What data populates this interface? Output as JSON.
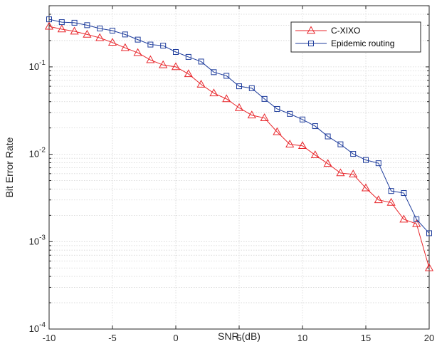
{
  "chart_data": {
    "type": "line",
    "title": "",
    "xlabel": "SNR (dB)",
    "ylabel": "Bit Error Rate",
    "xlim": [
      -10,
      20
    ],
    "ylim": [
      0.0001,
      0.5
    ],
    "yscale": "log",
    "grid": true,
    "legend_position": "top-right",
    "x_ticks": [
      {
        "value": -10,
        "label": "-10"
      },
      {
        "value": -5,
        "label": "-5"
      },
      {
        "value": 0,
        "label": "0"
      },
      {
        "value": 5,
        "label": "5"
      },
      {
        "value": 10,
        "label": "10"
      },
      {
        "value": 15,
        "label": "15"
      },
      {
        "value": 20,
        "label": "20"
      }
    ],
    "y_ticks": [
      {
        "value": 0.1,
        "base": "10",
        "exp": "-1"
      },
      {
        "value": 0.01,
        "base": "10",
        "exp": "-2"
      },
      {
        "value": 0.001,
        "base": "10",
        "exp": "-3"
      },
      {
        "value": 0.0001,
        "base": "10",
        "exp": "-4"
      }
    ],
    "x": [
      -10,
      -9,
      -8,
      -7,
      -6,
      -5,
      -4,
      -3,
      -2,
      -1,
      0,
      1,
      2,
      3,
      4,
      5,
      6,
      7,
      8,
      9,
      10,
      11,
      12,
      13,
      14,
      15,
      16,
      17,
      18,
      19,
      20
    ],
    "series": [
      {
        "name": "C-XIXO",
        "color": "#e8262b",
        "marker": "triangle",
        "values": [
          0.29,
          0.27,
          0.255,
          0.235,
          0.215,
          0.19,
          0.165,
          0.145,
          0.12,
          0.105,
          0.1,
          0.083,
          0.063,
          0.05,
          0.043,
          0.034,
          0.028,
          0.026,
          0.018,
          0.013,
          0.0125,
          0.0098,
          0.0078,
          0.0061,
          0.0059,
          0.0041,
          0.003,
          0.0028,
          0.0018,
          0.0016,
          0.0005
        ]
      },
      {
        "name": "Epidemic routing",
        "color": "#1f3d9c",
        "marker": "square",
        "values": [
          0.35,
          0.325,
          0.32,
          0.3,
          0.275,
          0.26,
          0.235,
          0.205,
          0.18,
          0.175,
          0.148,
          0.13,
          0.115,
          0.087,
          0.079,
          0.06,
          0.057,
          0.043,
          0.033,
          0.029,
          0.025,
          0.021,
          0.016,
          0.013,
          0.0101,
          0.0086,
          0.0079,
          0.0038,
          0.0036,
          0.0018,
          0.00125
        ]
      }
    ]
  }
}
